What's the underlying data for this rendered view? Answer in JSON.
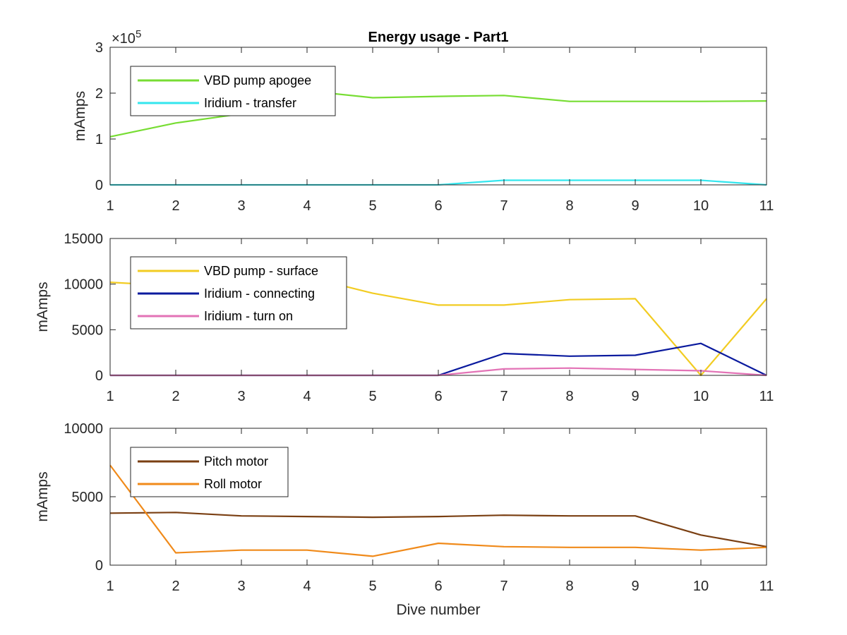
{
  "chart_data": [
    {
      "type": "line",
      "title": "Energy usage - Part1",
      "xlabel": "",
      "ylabel": "mAmps",
      "y_exponent": "×10",
      "y_exponent_power": "5",
      "xlim": [
        1,
        11
      ],
      "ylim": [
        0,
        3
      ],
      "x_ticks": [
        1,
        2,
        3,
        4,
        5,
        6,
        7,
        8,
        9,
        10,
        11
      ],
      "y_ticks": [
        0,
        1,
        2,
        3
      ],
      "grid": false,
      "legend": "top-left",
      "x": [
        1,
        2,
        3,
        4,
        5,
        6,
        7,
        8,
        9,
        10,
        11
      ],
      "series": [
        {
          "name": "VBD pump apogee",
          "color": "#77dd33",
          "values": [
            1.05,
            1.35,
            1.55,
            2.05,
            1.9,
            1.93,
            1.95,
            1.82,
            1.82,
            1.82,
            1.83
          ]
        },
        {
          "name": "Iridium - transfer",
          "color": "#33e6ee",
          "values": [
            0,
            0,
            0,
            0,
            0,
            0,
            0.1,
            0.1,
            0.1,
            0.1,
            0
          ]
        }
      ]
    },
    {
      "type": "line",
      "title": "",
      "xlabel": "",
      "ylabel": "mAmps",
      "xlim": [
        1,
        11
      ],
      "ylim": [
        0,
        15000
      ],
      "x_ticks": [
        1,
        2,
        3,
        4,
        5,
        6,
        7,
        8,
        9,
        10,
        11
      ],
      "y_ticks": [
        0,
        5000,
        10000,
        15000
      ],
      "grid": false,
      "legend": "top-left",
      "x": [
        1,
        2,
        3,
        4,
        5,
        6,
        7,
        8,
        9,
        10,
        11
      ],
      "series": [
        {
          "name": "VBD pump - surface",
          "color": "#f2cc22",
          "values": [
            10200,
            9800,
            10200,
            10800,
            9000,
            7700,
            7700,
            8300,
            8400,
            0,
            8400
          ]
        },
        {
          "name": "Iridium - connecting",
          "color": "#0a1a9e",
          "values": [
            0,
            0,
            0,
            0,
            0,
            0,
            2400,
            2100,
            2200,
            3500,
            0
          ]
        },
        {
          "name": "Iridium - turn on",
          "color": "#e373b6",
          "values": [
            0,
            0,
            0,
            0,
            0,
            0,
            700,
            800,
            650,
            500,
            0
          ]
        }
      ]
    },
    {
      "type": "line",
      "title": "",
      "xlabel": "Dive number",
      "ylabel": "mAmps",
      "xlim": [
        1,
        11
      ],
      "ylim": [
        0,
        10000
      ],
      "x_ticks": [
        1,
        2,
        3,
        4,
        5,
        6,
        7,
        8,
        9,
        10,
        11
      ],
      "y_ticks": [
        0,
        5000,
        10000
      ],
      "grid": false,
      "legend": "top-left",
      "x": [
        1,
        2,
        3,
        4,
        5,
        6,
        7,
        8,
        9,
        10,
        11
      ],
      "series": [
        {
          "name": "Pitch motor",
          "color": "#7a3f12",
          "values": [
            3800,
            3850,
            3600,
            3550,
            3500,
            3550,
            3650,
            3600,
            3600,
            2200,
            1350
          ]
        },
        {
          "name": "Roll motor",
          "color": "#f08a1a",
          "values": [
            7300,
            900,
            1100,
            1100,
            650,
            1600,
            1350,
            1300,
            1300,
            1100,
            1300
          ]
        }
      ]
    }
  ]
}
